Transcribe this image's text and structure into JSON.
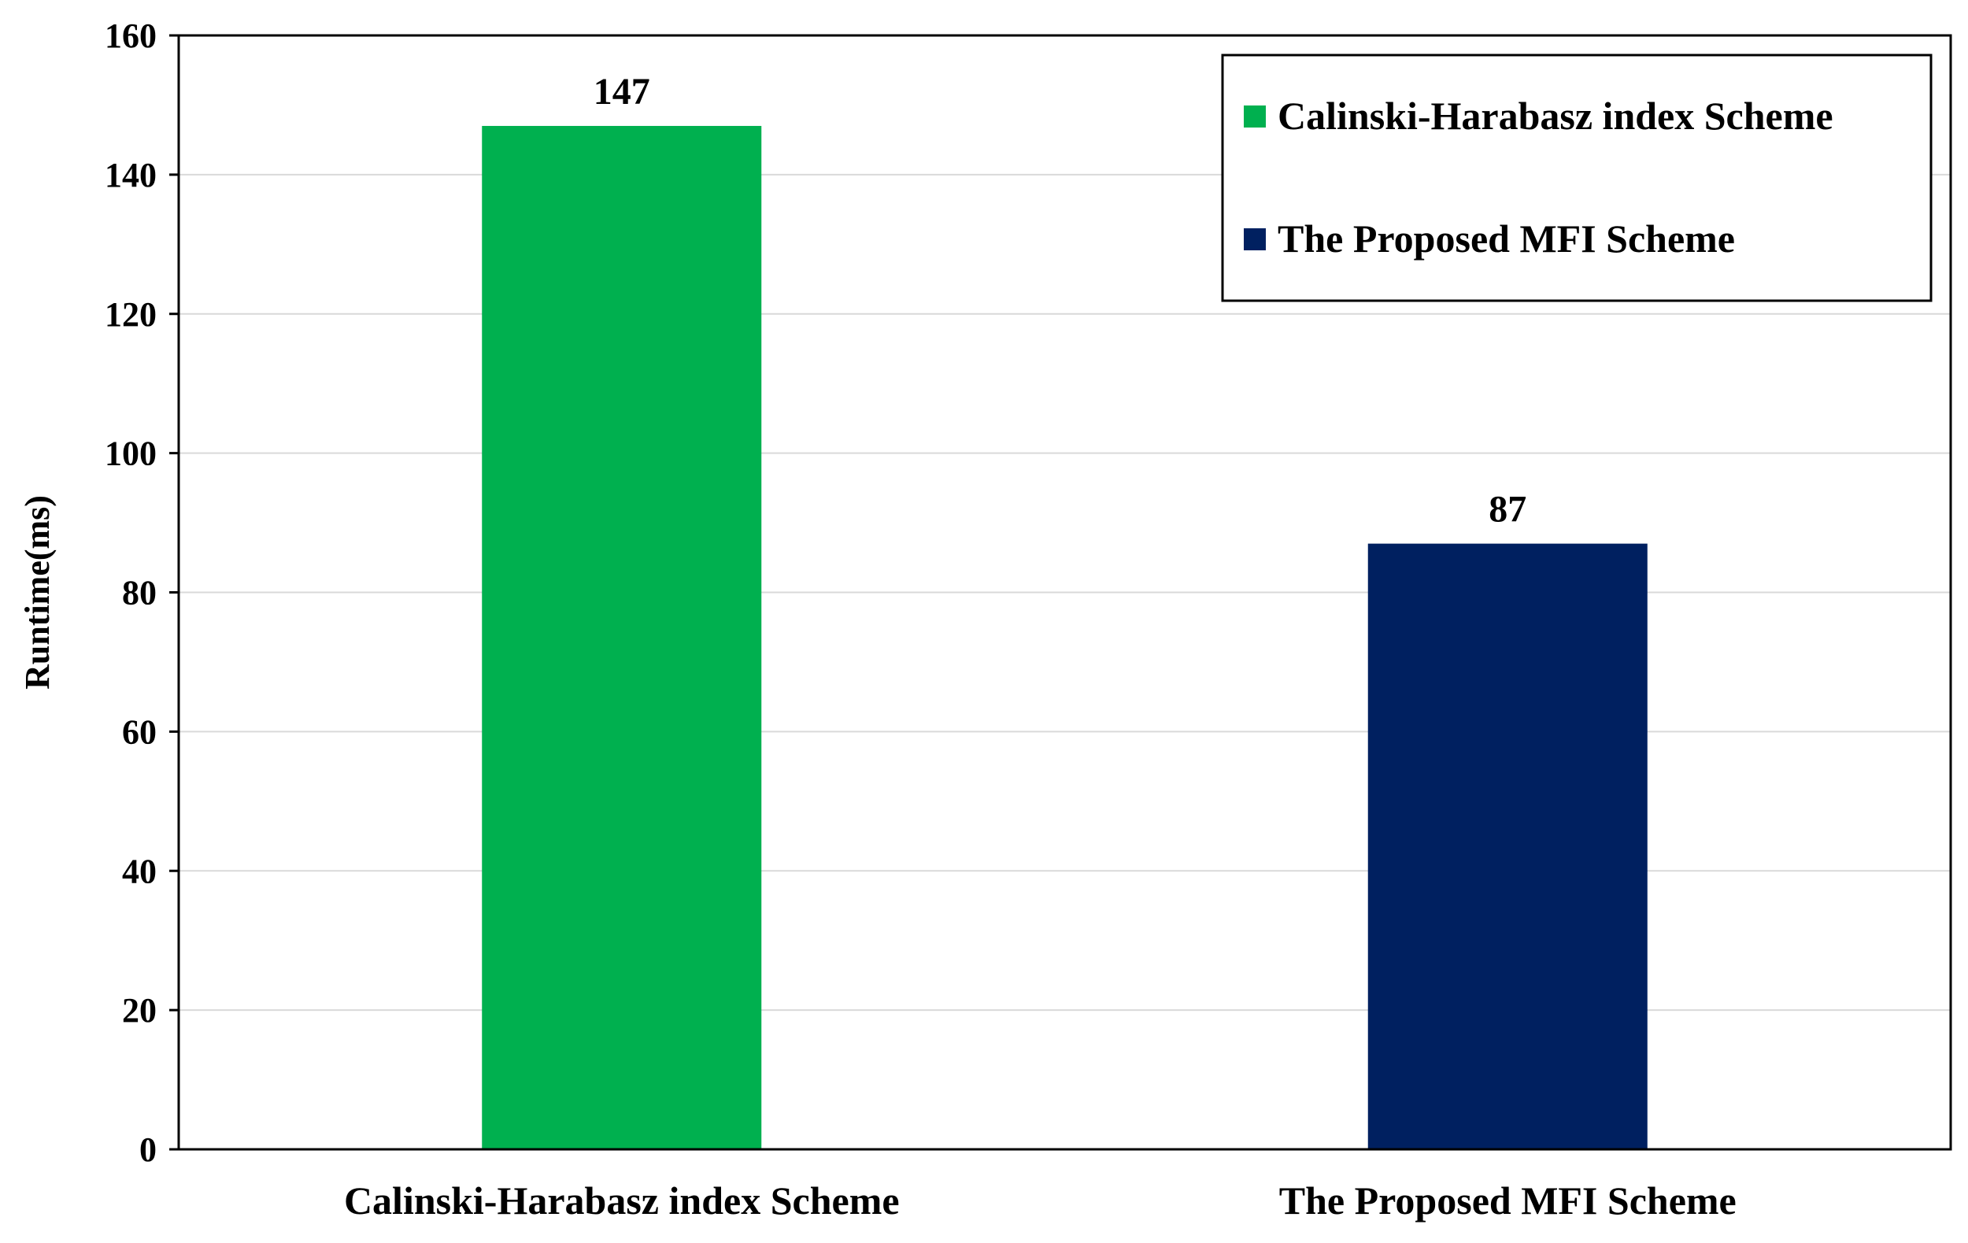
{
  "chart_data": {
    "type": "bar",
    "categories": [
      "Calinski-Harabasz index Scheme",
      "The Proposed MFI Scheme"
    ],
    "series": [
      {
        "name": "Calinski-Harabasz index Scheme",
        "values": [
          147,
          null
        ],
        "color": "#00b04f"
      },
      {
        "name": "The Proposed MFI Scheme",
        "values": [
          null,
          87
        ],
        "color": "#002060"
      }
    ],
    "values": [
      147,
      87
    ],
    "data_labels": [
      "147",
      "87"
    ],
    "title": "",
    "xlabel": "",
    "ylabel": "Runtime(ms)",
    "ylim": [
      0,
      160
    ],
    "yticks": [
      0,
      20,
      40,
      60,
      80,
      100,
      120,
      140,
      160
    ],
    "grid": true,
    "legend": {
      "position": "top-right",
      "entries": [
        {
          "label": "Calinski-Harabasz index Scheme",
          "color": "#00b04f"
        },
        {
          "label": "The Proposed MFI Scheme",
          "color": "#002060"
        }
      ]
    }
  }
}
